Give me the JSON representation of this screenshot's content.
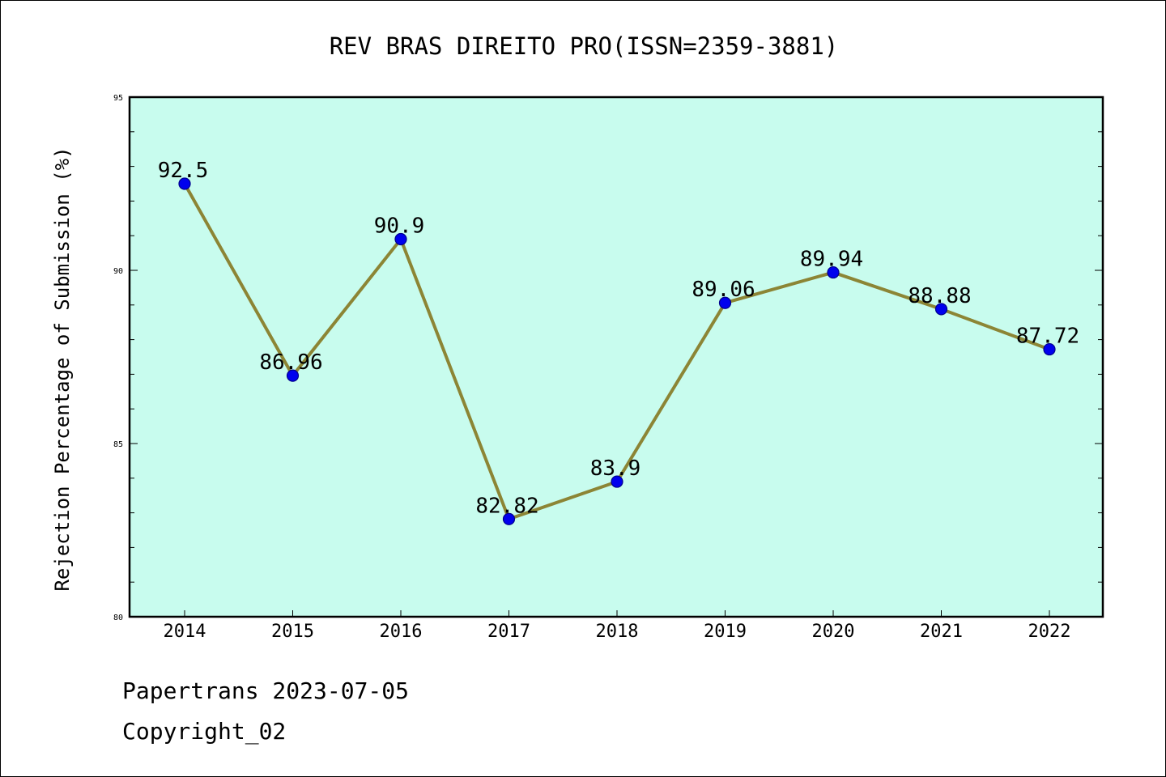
{
  "chart_data": {
    "type": "line",
    "title": "REV BRAS DIREITO PRO(ISSN=2359-3881)",
    "xlabel": "",
    "ylabel": "Rejection Percentage of Submission (%)",
    "categories": [
      "2014",
      "2015",
      "2016",
      "2017",
      "2018",
      "2019",
      "2020",
      "2021",
      "2022"
    ],
    "series": [
      {
        "values": [
          92.5,
          86.96,
          90.9,
          82.82,
          83.9,
          89.06,
          89.94,
          88.88,
          87.72
        ]
      }
    ],
    "data_labels": [
      "92.5",
      "86.96",
      "90.9",
      "82.82",
      "83.9",
      "89.06",
      "89.94",
      "88.88",
      "87.72"
    ],
    "ylim": [
      80,
      95
    ],
    "yticks": [
      80,
      85,
      90,
      95
    ],
    "ytick_labels": [
      "80",
      "85",
      "90",
      "95"
    ],
    "grid": false,
    "legend": "none",
    "colors": {
      "plot_background": "#c8fcee",
      "line": "#8c8535",
      "marker": "#0000ee",
      "marker_edge": "#00008b"
    }
  },
  "footer": {
    "line1": "Papertrans 2023-07-05",
    "line2": "Copyright_02"
  }
}
